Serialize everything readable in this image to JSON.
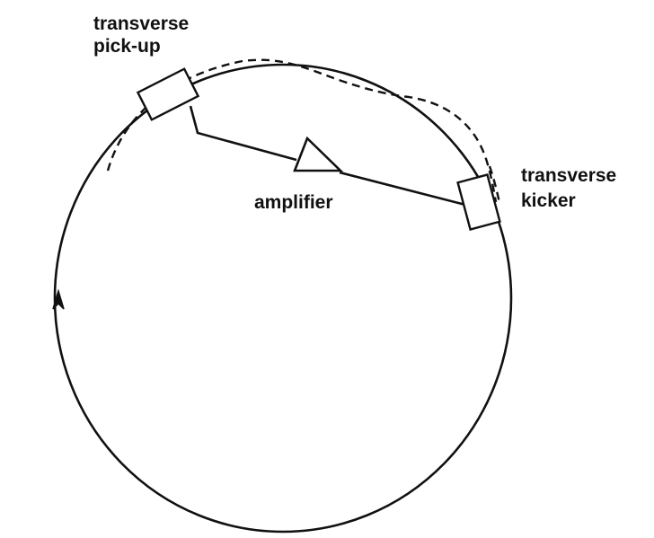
{
  "labels": {
    "pickup_line1": "transverse",
    "pickup_line2": "pick-up",
    "amplifier": "amplifier",
    "kicker_line1": "transverse",
    "kicker_line2": "kicker"
  },
  "colors": {
    "ink": "#111111",
    "background": "#ffffff"
  },
  "icons": {
    "direction_marker": "arrow-up-icon",
    "amplifier_symbol": "triangle-amplifier-icon"
  }
}
